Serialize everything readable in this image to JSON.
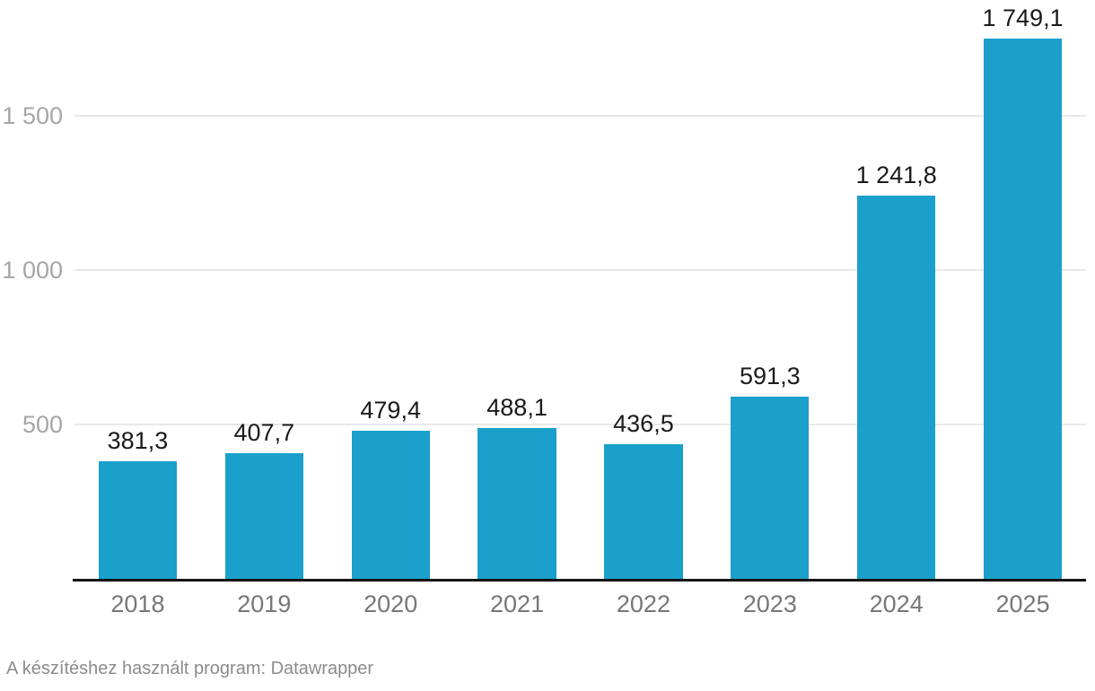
{
  "chart_data": {
    "type": "bar",
    "title": "",
    "categories": [
      "2018",
      "2019",
      "2020",
      "2021",
      "2022",
      "2023",
      "2024",
      "2025"
    ],
    "values": [
      381.3,
      407.7,
      479.4,
      488.1,
      436.5,
      591.3,
      1241.8,
      1749.1
    ],
    "value_labels": [
      "381,3",
      "407,7",
      "479,4",
      "488,1",
      "436,5",
      "591,3",
      "1 241,8",
      "1 749,1"
    ],
    "y_ticks": [
      {
        "value": 500,
        "label": "500"
      },
      {
        "value": 1000,
        "label": "1 000"
      },
      {
        "value": 1500,
        "label": "1 500"
      }
    ],
    "ylim": [
      0,
      1875
    ],
    "grid": "horizontal",
    "legend": "none",
    "xlabel": "",
    "ylabel": "",
    "bar_color": "#1aa0cb"
  },
  "footer": {
    "attribution": "A készítéshez használt program: Datawrapper"
  },
  "colors": {
    "bar": "#1aa0cb",
    "value_label": "#1a1a1a",
    "x_tick_label": "#777777",
    "y_tick_label": "#a6a6a6",
    "gridline": "#e9e9e9",
    "baseline": "#141414",
    "footer_text": "#8b8b8b",
    "background": "#ffffff"
  }
}
